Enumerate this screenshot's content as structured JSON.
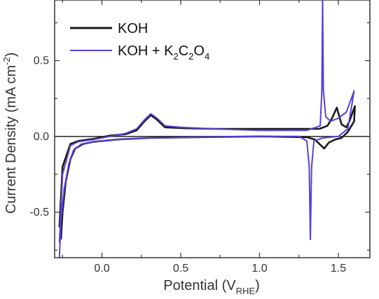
{
  "chart_data": {
    "type": "line",
    "title": "",
    "xlabel": "Potential (V",
    "xlabel_sub": "RHE",
    "xlabel_close": ")",
    "ylabel": "Current Density (mA cm",
    "ylabel_sup": "-2",
    "ylabel_close": ")",
    "xlim": [
      -0.3,
      1.7
    ],
    "ylim": [
      -0.8,
      0.9
    ],
    "xticks": [
      -0.25,
      0,
      0.25,
      0.5,
      0.75,
      1.0,
      1.25,
      1.5
    ],
    "xtick_labels": [
      "0.0",
      "0.5",
      "1.0",
      "1.5"
    ],
    "xtick_label_values": [
      0,
      0.5,
      1.0,
      1.5
    ],
    "yticks": [
      -0.75,
      -0.5,
      -0.25,
      0,
      0.25,
      0.5,
      0.75
    ],
    "ytick_labels": [
      "-0.5",
      "0.0",
      "0.5"
    ],
    "ytick_label_values": [
      -0.5,
      0,
      0.5
    ],
    "zero_line": true,
    "legend_position": "top-left",
    "legend": [
      {
        "label": "KOH",
        "color": "#1a1a1a"
      },
      {
        "label_parts": [
          {
            "t": "KOH + K",
            "sub": false
          },
          {
            "t": "2",
            "sub": true
          },
          {
            "t": "C",
            "sub": false
          },
          {
            "t": "2",
            "sub": true
          },
          {
            "t": "O",
            "sub": false
          },
          {
            "t": "4",
            "sub": true
          }
        ],
        "color": "#5b3fd6"
      }
    ],
    "series": [
      {
        "color": "#1a1a1a",
        "points": [
          [
            -0.26,
            -0.68
          ],
          [
            -0.25,
            -0.5
          ],
          [
            -0.23,
            -0.3
          ],
          [
            -0.2,
            -0.15
          ],
          [
            -0.17,
            -0.08
          ],
          [
            -0.12,
            -0.05
          ],
          [
            -0.05,
            -0.035
          ],
          [
            0.1,
            -0.02
          ],
          [
            0.3,
            -0.01
          ],
          [
            0.6,
            -0.005
          ],
          [
            1.0,
            0.0
          ],
          [
            1.3,
            -0.005
          ],
          [
            1.35,
            -0.02
          ],
          [
            1.38,
            -0.05
          ],
          [
            1.41,
            -0.08
          ],
          [
            1.44,
            -0.04
          ],
          [
            1.48,
            -0.02
          ],
          [
            1.52,
            -0.01
          ],
          [
            1.56,
            0.03
          ],
          [
            1.6,
            0.1
          ],
          [
            1.605,
            0.2
          ],
          [
            1.57,
            0.1
          ],
          [
            1.55,
            0.06
          ],
          [
            1.52,
            0.08
          ],
          [
            1.49,
            0.19
          ],
          [
            1.46,
            0.12
          ],
          [
            1.43,
            0.07
          ],
          [
            1.38,
            0.05
          ],
          [
            1.2,
            0.05
          ],
          [
            1.0,
            0.05
          ],
          [
            0.7,
            0.05
          ],
          [
            0.5,
            0.055
          ],
          [
            0.4,
            0.06
          ],
          [
            0.35,
            0.11
          ],
          [
            0.31,
            0.14
          ],
          [
            0.27,
            0.1
          ],
          [
            0.22,
            0.04
          ],
          [
            0.15,
            0.015
          ],
          [
            0.05,
            0.005
          ],
          [
            -0.05,
            -0.015
          ],
          [
            -0.15,
            -0.03
          ],
          [
            -0.2,
            -0.05
          ],
          [
            -0.25,
            -0.2
          ],
          [
            -0.27,
            -0.6
          ]
        ]
      },
      {
        "color": "#5b3fd6",
        "points": [
          [
            -0.27,
            -0.8
          ],
          [
            -0.26,
            -0.55
          ],
          [
            -0.24,
            -0.35
          ],
          [
            -0.21,
            -0.18
          ],
          [
            -0.18,
            -0.09
          ],
          [
            -0.13,
            -0.05
          ],
          [
            -0.05,
            -0.035
          ],
          [
            0.1,
            -0.02
          ],
          [
            0.3,
            -0.01
          ],
          [
            0.6,
            -0.005
          ],
          [
            1.0,
            0.0
          ],
          [
            1.25,
            0.0
          ],
          [
            1.3,
            -0.03
          ],
          [
            1.315,
            -0.2
          ],
          [
            1.322,
            -0.68
          ],
          [
            1.33,
            -0.2
          ],
          [
            1.345,
            -0.03
          ],
          [
            1.4,
            -0.01
          ],
          [
            1.5,
            0.0
          ],
          [
            1.56,
            0.05
          ],
          [
            1.6,
            0.3
          ],
          [
            1.55,
            0.16
          ],
          [
            1.5,
            0.12
          ],
          [
            1.45,
            0.1
          ],
          [
            1.42,
            0.13
          ],
          [
            1.405,
            0.3
          ],
          [
            1.4,
            0.9
          ],
          [
            1.395,
            0.3
          ],
          [
            1.385,
            0.07
          ],
          [
            1.3,
            0.04
          ],
          [
            1.0,
            0.04
          ],
          [
            0.7,
            0.05
          ],
          [
            0.5,
            0.06
          ],
          [
            0.4,
            0.07
          ],
          [
            0.35,
            0.12
          ],
          [
            0.31,
            0.15
          ],
          [
            0.27,
            0.11
          ],
          [
            0.22,
            0.05
          ],
          [
            0.15,
            0.02
          ],
          [
            0.05,
            0.0
          ],
          [
            -0.05,
            -0.02
          ],
          [
            -0.15,
            -0.035
          ],
          [
            -0.2,
            -0.06
          ],
          [
            -0.25,
            -0.25
          ],
          [
            -0.27,
            -0.7
          ]
        ]
      }
    ]
  }
}
